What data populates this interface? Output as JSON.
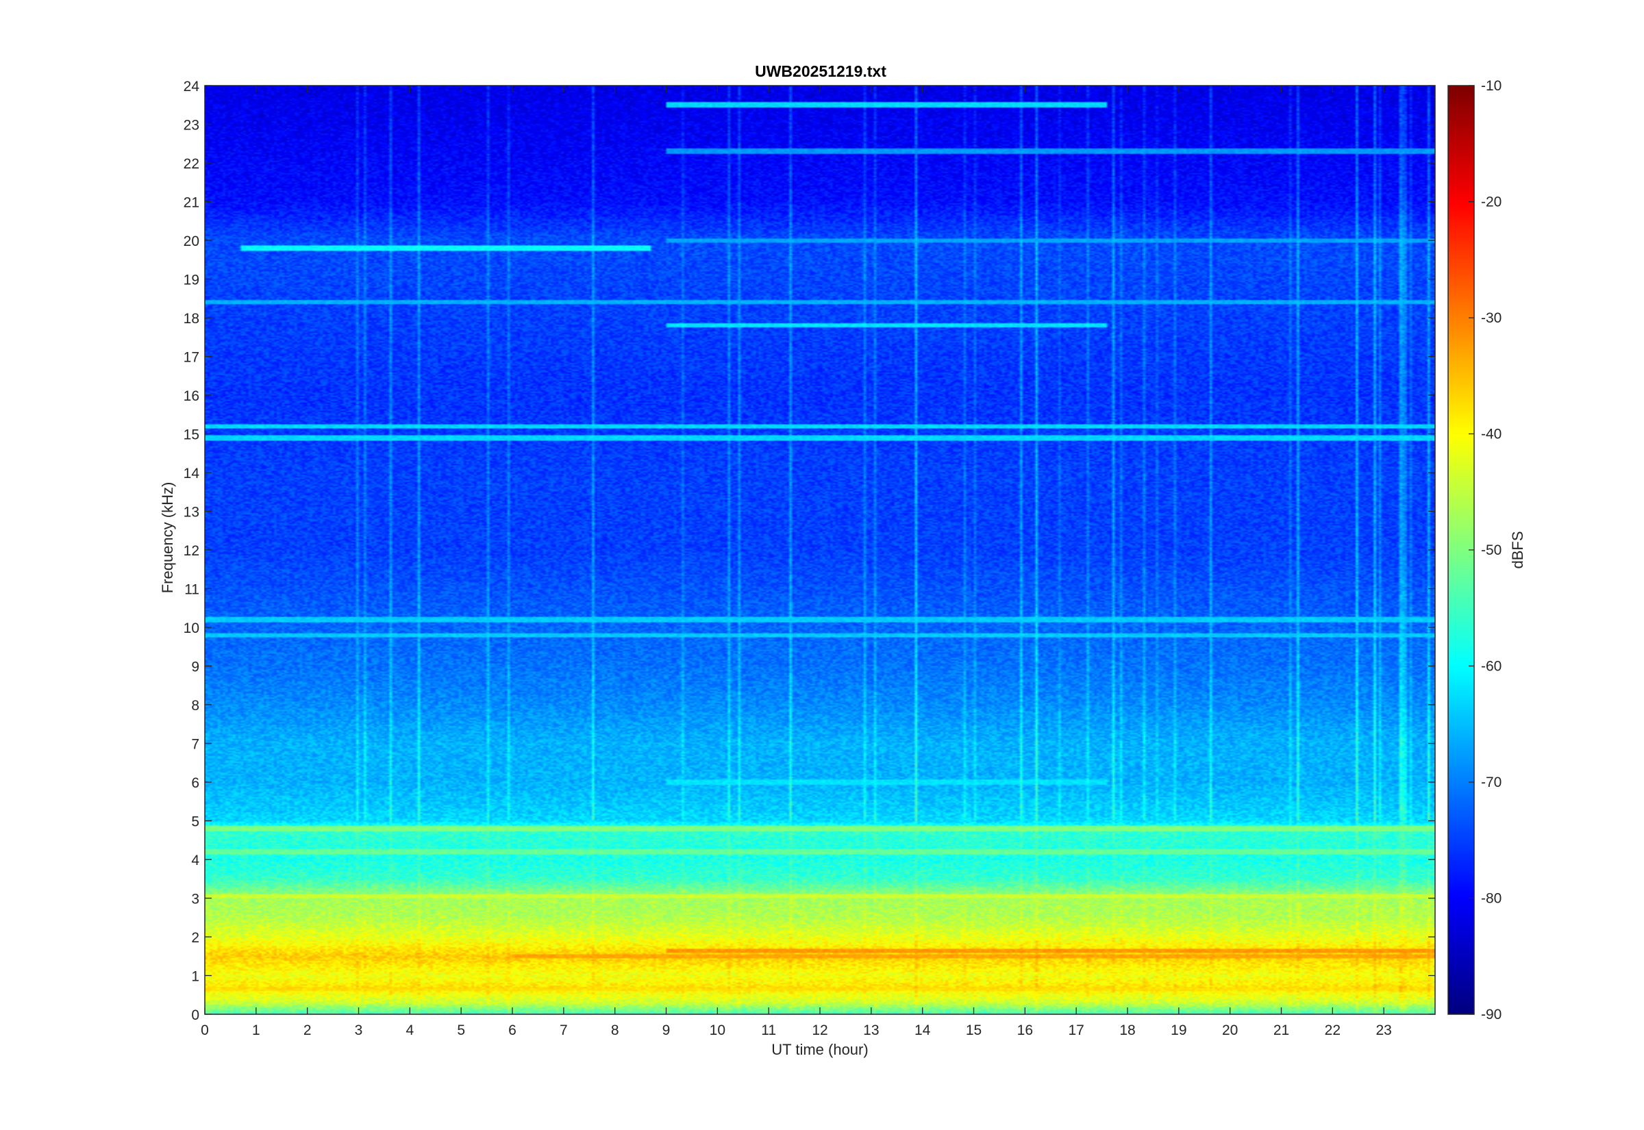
{
  "chart_data": {
    "type": "heatmap",
    "title": "UWB20251219.txt",
    "xlabel": "UT time (hour)",
    "ylabel": "Frequency (kHz)",
    "colorbar_label": "dBFS",
    "xlim": [
      0,
      24
    ],
    "ylim": [
      0,
      24
    ],
    "clim": [
      -90,
      -10
    ],
    "colormap": "jet",
    "x_ticks": [
      "0",
      "1",
      "2",
      "3",
      "4",
      "5",
      "6",
      "7",
      "8",
      "9",
      "10",
      "11",
      "12",
      "13",
      "14",
      "15",
      "16",
      "17",
      "18",
      "19",
      "20",
      "21",
      "22",
      "23"
    ],
    "y_ticks": [
      "0",
      "1",
      "2",
      "3",
      "4",
      "5",
      "6",
      "7",
      "8",
      "9",
      "10",
      "11",
      "12",
      "13",
      "14",
      "15",
      "16",
      "17",
      "18",
      "19",
      "20",
      "21",
      "22",
      "23",
      "24"
    ],
    "colorbar_ticks": [
      "-90",
      "-80",
      "-70",
      "-60",
      "-50",
      "-40",
      "-30",
      "-20",
      "-10"
    ],
    "frequency_profile_dBFS": [
      {
        "khz": 0.0,
        "dbfs": -55
      },
      {
        "khz": 0.3,
        "dbfs": -44
      },
      {
        "khz": 0.7,
        "dbfs": -38
      },
      {
        "khz": 1.0,
        "dbfs": -41
      },
      {
        "khz": 1.5,
        "dbfs": -36
      },
      {
        "khz": 2.0,
        "dbfs": -42
      },
      {
        "khz": 2.5,
        "dbfs": -46
      },
      {
        "khz": 3.0,
        "dbfs": -47
      },
      {
        "khz": 3.5,
        "dbfs": -56
      },
      {
        "khz": 4.0,
        "dbfs": -58
      },
      {
        "khz": 4.8,
        "dbfs": -56
      },
      {
        "khz": 5.0,
        "dbfs": -63
      },
      {
        "khz": 6.0,
        "dbfs": -66
      },
      {
        "khz": 7.0,
        "dbfs": -66
      },
      {
        "khz": 8.0,
        "dbfs": -69
      },
      {
        "khz": 9.0,
        "dbfs": -71
      },
      {
        "khz": 10.0,
        "dbfs": -72
      },
      {
        "khz": 12.0,
        "dbfs": -75
      },
      {
        "khz": 14.0,
        "dbfs": -75
      },
      {
        "khz": 16.0,
        "dbfs": -76
      },
      {
        "khz": 18.0,
        "dbfs": -75
      },
      {
        "khz": 20.0,
        "dbfs": -74
      },
      {
        "khz": 21.0,
        "dbfs": -79
      },
      {
        "khz": 24.0,
        "dbfs": -82
      }
    ],
    "persistent_lines": [
      {
        "khz": 0.65,
        "dbfs": -38,
        "from_hour": 0,
        "to_hour": 24
      },
      {
        "khz": 1.5,
        "dbfs": -33,
        "from_hour": 6,
        "to_hour": 24
      },
      {
        "khz": 1.65,
        "dbfs": -32,
        "from_hour": 9,
        "to_hour": 24
      },
      {
        "khz": 3.05,
        "dbfs": -44,
        "from_hour": 0,
        "to_hour": 24
      },
      {
        "khz": 4.2,
        "dbfs": -52,
        "from_hour": 0,
        "to_hour": 24
      },
      {
        "khz": 4.8,
        "dbfs": -50,
        "from_hour": 0,
        "to_hour": 24
      },
      {
        "khz": 6.0,
        "dbfs": -62,
        "from_hour": 9,
        "to_hour": 17.6
      },
      {
        "khz": 9.8,
        "dbfs": -64,
        "from_hour": 0,
        "to_hour": 24
      },
      {
        "khz": 10.2,
        "dbfs": -64,
        "from_hour": 0,
        "to_hour": 24
      },
      {
        "khz": 14.9,
        "dbfs": -63,
        "from_hour": 0,
        "to_hour": 24
      },
      {
        "khz": 15.2,
        "dbfs": -63,
        "from_hour": 0,
        "to_hour": 24
      },
      {
        "khz": 17.8,
        "dbfs": -62,
        "from_hour": 9,
        "to_hour": 17.6
      },
      {
        "khz": 18.4,
        "dbfs": -66,
        "from_hour": 0,
        "to_hour": 24
      },
      {
        "khz": 19.8,
        "dbfs": -60,
        "from_hour": 0.7,
        "to_hour": 8.7
      },
      {
        "khz": 20.0,
        "dbfs": -67,
        "from_hour": 9,
        "to_hour": 24
      },
      {
        "khz": 22.3,
        "dbfs": -68,
        "from_hour": 9,
        "to_hour": 24
      },
      {
        "khz": 23.5,
        "dbfs": -63,
        "from_hour": 9,
        "to_hour": 17.6
      }
    ],
    "grid": false,
    "colorbar": "right"
  }
}
